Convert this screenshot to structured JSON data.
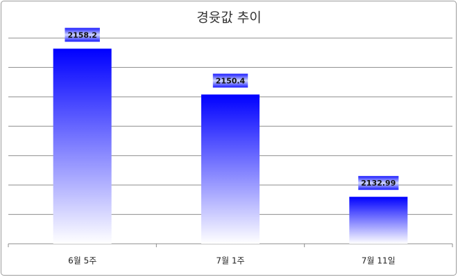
{
  "chart_data": {
    "type": "bar",
    "title": "경윳값 추이",
    "categories": [
      "6월 5주",
      "7월 1주",
      "7월 11일"
    ],
    "values": [
      2158.2,
      2150.4,
      2132.99
    ],
    "color": "#0000ff",
    "ylim": [
      2125,
      2160
    ],
    "yticks": [
      2125,
      2130,
      2135,
      2140,
      2145,
      2150,
      2155,
      2160
    ],
    "grid": true
  }
}
